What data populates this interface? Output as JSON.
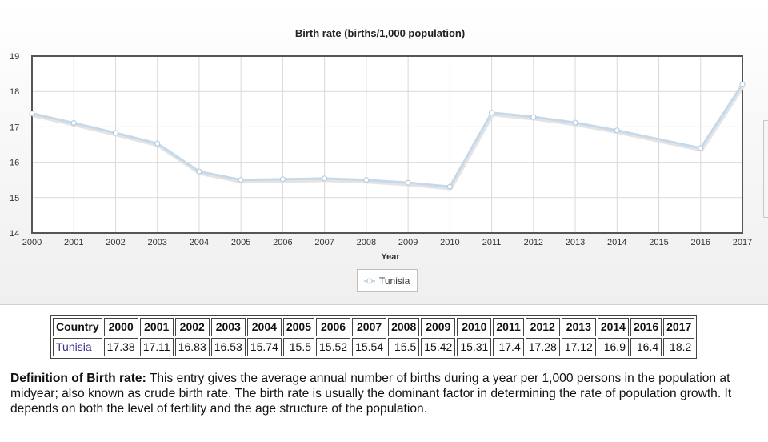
{
  "chart_data": {
    "type": "line",
    "title": "Birth rate (births/1,000 population)",
    "xlabel": "Year",
    "ylabel": "",
    "x": [
      2000,
      2001,
      2002,
      2003,
      2004,
      2005,
      2006,
      2007,
      2008,
      2009,
      2010,
      2011,
      2012,
      2013,
      2014,
      2015,
      2016,
      2017
    ],
    "xlim": [
      2000,
      2017
    ],
    "ylim": [
      14,
      19
    ],
    "yticks": [
      14,
      15,
      16,
      17,
      18,
      19
    ],
    "grid": true,
    "legend": "bottom-center",
    "series": [
      {
        "name": "Tunisia",
        "points": [
          [
            2000,
            17.38
          ],
          [
            2001,
            17.11
          ],
          [
            2002,
            16.83
          ],
          [
            2003,
            16.53
          ],
          [
            2004,
            15.74
          ],
          [
            2005,
            15.5
          ],
          [
            2006,
            15.52
          ],
          [
            2007,
            15.54
          ],
          [
            2008,
            15.5
          ],
          [
            2009,
            15.42
          ],
          [
            2010,
            15.31
          ],
          [
            2011,
            17.4
          ],
          [
            2012,
            17.28
          ],
          [
            2013,
            17.12
          ],
          [
            2014,
            16.9
          ],
          [
            2016,
            16.4
          ],
          [
            2017,
            18.2
          ]
        ],
        "color": "#c5d9ea"
      }
    ]
  },
  "table": {
    "header_country": "Country",
    "years": [
      "2000",
      "2001",
      "2002",
      "2003",
      "2004",
      "2005",
      "2006",
      "2007",
      "2008",
      "2009",
      "2010",
      "2011",
      "2012",
      "2013",
      "2014",
      "2016",
      "2017"
    ],
    "country": "Tunisia",
    "values": [
      "17.38",
      "17.11",
      "16.83",
      "16.53",
      "15.74",
      "15.5",
      "15.52",
      "15.54",
      "15.5",
      "15.42",
      "15.31",
      "17.4",
      "17.28",
      "17.12",
      "16.9",
      "16.4",
      "18.2"
    ]
  },
  "definition": {
    "label": "Definition of Birth rate:",
    "text": "This entry gives the average annual number of births during a year per 1,000 persons in the population at midyear; also known as crude birth rate. The birth rate is usually the dominant factor in determining the rate of population growth. It depends on both the level of fertility and the age structure of the population."
  },
  "colors": {
    "line": "#c5d9ea",
    "marker_stroke": "#a9c6de",
    "grid": "#d9d9d9",
    "plot_border": "#555555",
    "link": "#3d2f87"
  }
}
